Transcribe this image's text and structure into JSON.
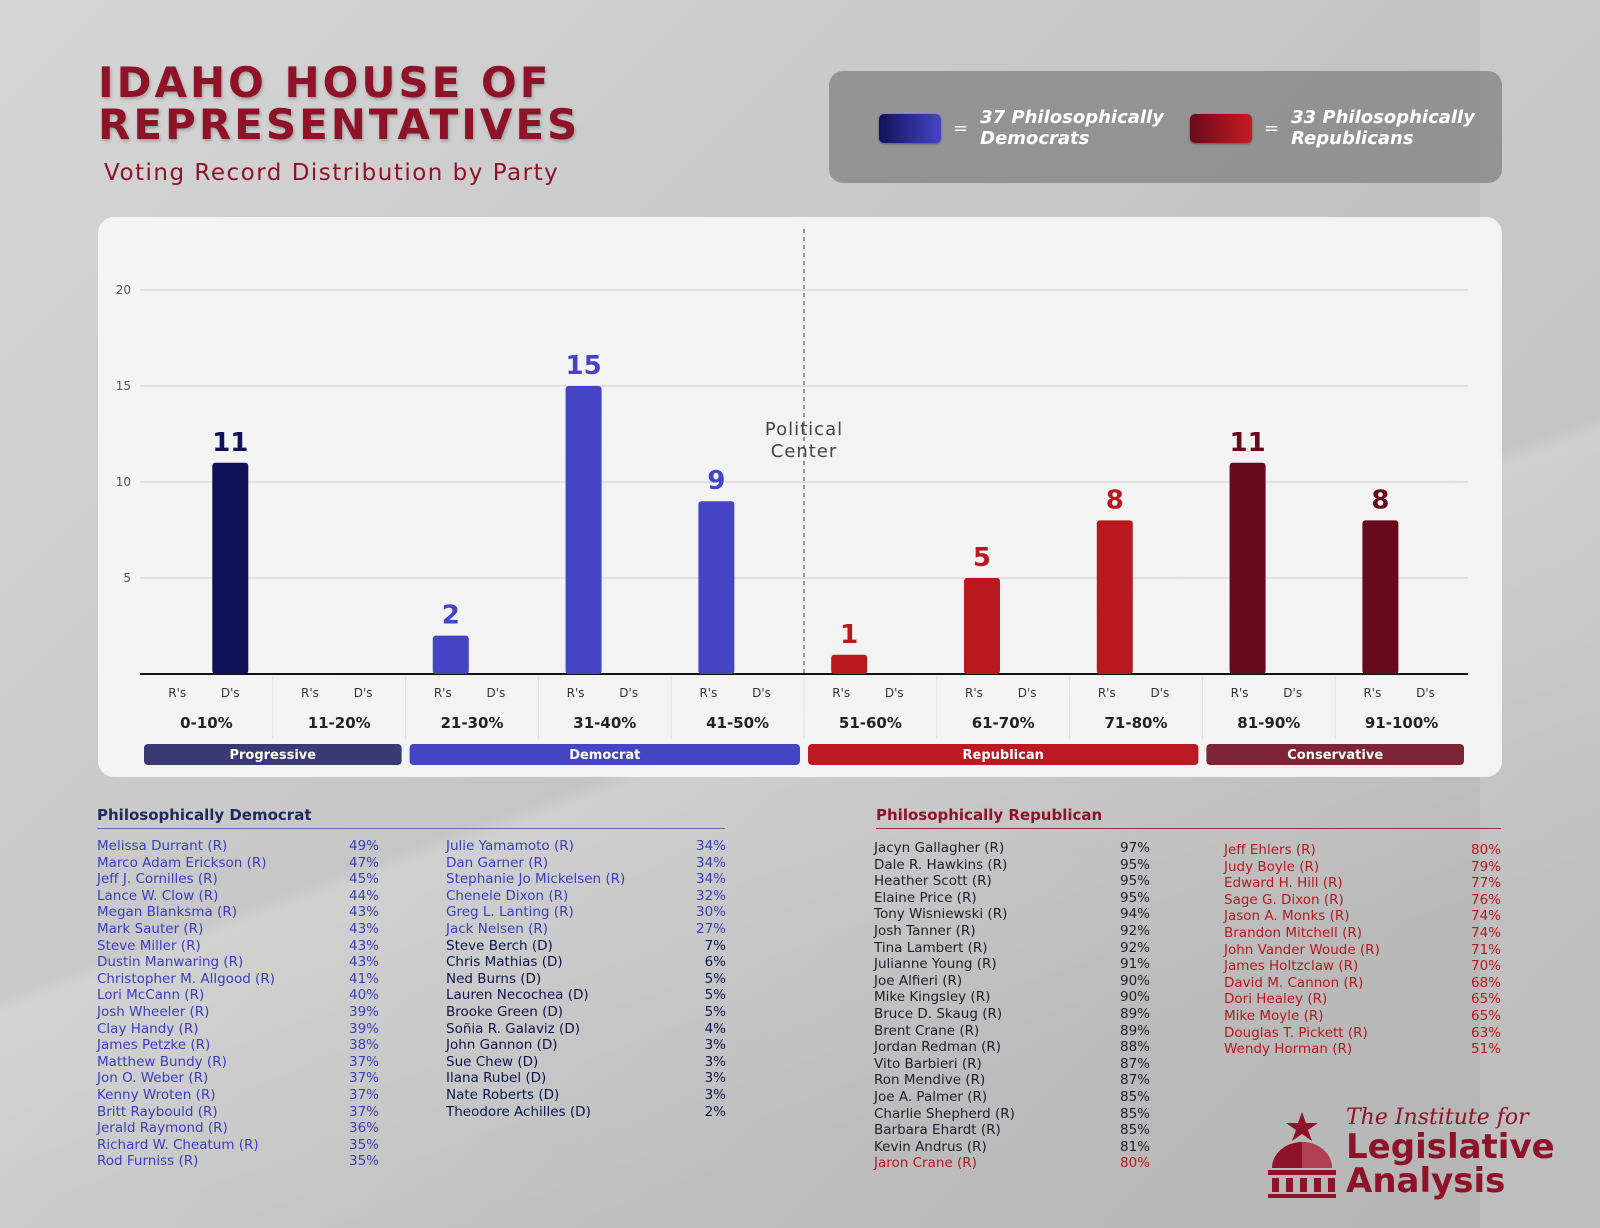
{
  "header": {
    "title_line1": "IDAHO HOUSE OF",
    "title_line2": "REPRESENTATIVES",
    "subtitle": "Voting Record Distribution by Party"
  },
  "legend": {
    "dem_text": "37 Philosophically Democrats",
    "rep_text": "33 Philosophically Republicans",
    "eq": "=",
    "dem_color": "#3a3ab8",
    "rep_color": "#b81a22"
  },
  "chart_data": {
    "type": "bar",
    "ylim": [
      0,
      20
    ],
    "yticks": [
      5,
      10,
      15,
      20
    ],
    "categories": [
      "0-10%",
      "11-20%",
      "21-30%",
      "31-40%",
      "41-50%",
      "51-60%",
      "61-70%",
      "71-80%",
      "81-90%",
      "91-100%"
    ],
    "sublabels": [
      "R's",
      "D's"
    ],
    "series": [
      {
        "values": [
          null,
          null,
          2,
          15,
          9,
          1,
          5,
          8,
          11,
          8
        ]
      },
      {
        "values": [
          11,
          null,
          null,
          null,
          null,
          null,
          null,
          null,
          null,
          null
        ]
      }
    ],
    "bar_colors": [
      "#0f1057",
      "#0f1057",
      "#4444c4",
      "#4444c4",
      "#4444c4",
      "#b8191f",
      "#b8191f",
      "#b8191f",
      "#680a1c",
      "#680a1c"
    ],
    "center_label": [
      "Political",
      "Center"
    ],
    "groups": [
      {
        "label": "Progressive",
        "from": 0,
        "to": 1,
        "color": "#3a3a72"
      },
      {
        "label": "Democrat",
        "from": 2,
        "to": 4,
        "color": "#4545c4"
      },
      {
        "label": "Republican",
        "from": 5,
        "to": 7,
        "color": "#bc1a22"
      },
      {
        "label": "Conservative",
        "from": 8,
        "to": 9,
        "color": "#7e2535"
      }
    ]
  },
  "dem_list": {
    "title": "Philosophically Democrat",
    "col1": [
      {
        "name": "Melissa Durrant (R)",
        "pct": "49%"
      },
      {
        "name": "Marco Adam Erickson (R)",
        "pct": "47%"
      },
      {
        "name": "Jeff J. Cornilles (R)",
        "pct": "45%"
      },
      {
        "name": "Lance W. Clow (R)",
        "pct": "44%"
      },
      {
        "name": "Megan Blanksma (R)",
        "pct": "43%"
      },
      {
        "name": "Mark Sauter (R)",
        "pct": "43%"
      },
      {
        "name": "Steve Miller (R)",
        "pct": "43%"
      },
      {
        "name": "Dustin Manwaring (R)",
        "pct": "43%"
      },
      {
        "name": "Christopher M. Allgood (R)",
        "pct": "41%"
      },
      {
        "name": "Lori McCann (R)",
        "pct": "40%"
      },
      {
        "name": "Josh Wheeler (R)",
        "pct": "39%"
      },
      {
        "name": "Clay Handy (R)",
        "pct": "39%"
      },
      {
        "name": "James Petzke (R)",
        "pct": "38%"
      },
      {
        "name": "Matthew Bundy (R)",
        "pct": "37%"
      },
      {
        "name": "Jon O. Weber (R)",
        "pct": "37%"
      },
      {
        "name": "Kenny Wroten (R)",
        "pct": "37%"
      },
      {
        "name": "Britt Raybould (R)",
        "pct": "37%"
      },
      {
        "name": "Jerald Raymond (R)",
        "pct": "36%"
      },
      {
        "name": "Richard W. Cheatum (R)",
        "pct": "35%"
      },
      {
        "name": "Rod Furniss (R)",
        "pct": "35%"
      }
    ],
    "col2": [
      {
        "name": "Julie Yamamoto (R)",
        "pct": "34%"
      },
      {
        "name": "Dan Garner (R)",
        "pct": "34%"
      },
      {
        "name": "Stephanie Jo Mickelsen (R)",
        "pct": "34%"
      },
      {
        "name": "Chenele Dixon (R)",
        "pct": "32%"
      },
      {
        "name": "Greg L. Lanting (R)",
        "pct": "30%"
      },
      {
        "name": "Jack Nelsen (R)",
        "pct": "27%"
      },
      {
        "name": "Steve Berch (D)",
        "pct": "7%"
      },
      {
        "name": "Chris Mathias (D)",
        "pct": "6%"
      },
      {
        "name": "Ned Burns (D)",
        "pct": "5%"
      },
      {
        "name": "Lauren Necochea (D)",
        "pct": "5%"
      },
      {
        "name": "Brooke Green (D)",
        "pct": "5%"
      },
      {
        "name": "Soñia R. Galaviz (D)",
        "pct": "4%"
      },
      {
        "name": "John Gannon (D)",
        "pct": "3%"
      },
      {
        "name": "Sue Chew (D)",
        "pct": "3%"
      },
      {
        "name": "Ilana Rubel (D)",
        "pct": "3%"
      },
      {
        "name": "Nate Roberts (D)",
        "pct": "3%"
      },
      {
        "name": "Theodore Achilles (D)",
        "pct": "2%"
      }
    ]
  },
  "rep_list": {
    "title": "Philosophically Republican",
    "col1": [
      {
        "name": "Jacyn Gallagher (R)",
        "pct": "97%"
      },
      {
        "name": "Dale R. Hawkins (R)",
        "pct": "95%"
      },
      {
        "name": "Heather Scott (R)",
        "pct": "95%"
      },
      {
        "name": "Elaine Price (R)",
        "pct": "95%"
      },
      {
        "name": "Tony Wisniewski (R)",
        "pct": "94%"
      },
      {
        "name": "Josh Tanner (R)",
        "pct": "92%"
      },
      {
        "name": "Tina Lambert (R)",
        "pct": "92%"
      },
      {
        "name": "Julianne Young (R)",
        "pct": "91%"
      },
      {
        "name": "Joe Alfieri (R)",
        "pct": "90%"
      },
      {
        "name": "Mike Kingsley (R)",
        "pct": "90%"
      },
      {
        "name": "Bruce D. Skaug (R)",
        "pct": "89%"
      },
      {
        "name": "Brent Crane (R)",
        "pct": "89%"
      },
      {
        "name": "Jordan Redman (R)",
        "pct": "88%"
      },
      {
        "name": "Vito Barbieri (R)",
        "pct": "87%"
      },
      {
        "name": "Ron Mendive (R)",
        "pct": "87%"
      },
      {
        "name": "Joe A. Palmer (R)",
        "pct": "85%"
      },
      {
        "name": "Charlie Shepherd (R)",
        "pct": "85%"
      },
      {
        "name": "Barbara Ehardt (R)",
        "pct": "85%"
      },
      {
        "name": "Kevin Andrus (R)",
        "pct": "81%"
      },
      {
        "name": "Jaron Crane (R)",
        "pct": "80%"
      }
    ],
    "col2": [
      {
        "name": "Jeff Ehlers (R)",
        "pct": "80%"
      },
      {
        "name": "Judy Boyle (R)",
        "pct": "79%"
      },
      {
        "name": "Edward H. Hill (R)",
        "pct": "77%"
      },
      {
        "name": "Sage G. Dixon (R)",
        "pct": "76%"
      },
      {
        "name": "Jason A. Monks (R)",
        "pct": "74%"
      },
      {
        "name": "Brandon Mitchell (R)",
        "pct": "74%"
      },
      {
        "name": "John Vander Woude (R)",
        "pct": "71%"
      },
      {
        "name": "James Holtzclaw (R)",
        "pct": "70%"
      },
      {
        "name": "David M. Cannon (R)",
        "pct": "68%"
      },
      {
        "name": "Dori Healey (R)",
        "pct": "65%"
      },
      {
        "name": "Mike Moyle (R)",
        "pct": "65%"
      },
      {
        "name": "Douglas T. Pickett (R)",
        "pct": "63%"
      },
      {
        "name": "Wendy Horman (R)",
        "pct": "51%"
      }
    ]
  },
  "list_colors": {
    "dem_r": "#3d3dbf",
    "dem_d": "#10124a",
    "rep_high": "#1e1e2a",
    "rep_low": "#b8191f"
  },
  "logo": {
    "line1": "The Institute for",
    "line2": "Legislative",
    "line3": "Analysis"
  }
}
